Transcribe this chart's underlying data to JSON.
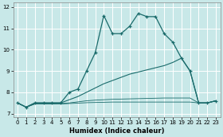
{
  "xlabel": "Humidex (Indice chaleur)",
  "bg_color": "#c8e8e8",
  "line_color": "#1a6b6b",
  "grid_color": "#ffffff",
  "xlim": [
    -0.5,
    23.5
  ],
  "ylim": [
    6.85,
    12.2
  ],
  "yticks": [
    7,
    8,
    9,
    10,
    11,
    12
  ],
  "xticks": [
    0,
    1,
    2,
    3,
    4,
    5,
    6,
    7,
    8,
    9,
    10,
    11,
    12,
    13,
    14,
    15,
    16,
    17,
    18,
    19,
    20,
    21,
    22,
    23
  ],
  "line1_x": [
    0,
    1,
    2,
    3,
    4,
    5,
    6,
    7,
    8,
    9,
    10,
    11,
    12,
    13,
    14,
    15,
    16,
    17,
    18,
    19,
    20,
    21,
    22,
    23
  ],
  "line1_y": [
    7.5,
    7.3,
    7.5,
    7.5,
    7.5,
    7.5,
    8.0,
    8.15,
    9.0,
    9.85,
    11.6,
    10.75,
    10.75,
    11.1,
    11.7,
    11.55,
    11.55,
    10.75,
    10.35,
    9.6,
    9.0,
    7.5,
    7.5,
    7.6
  ],
  "line2_x": [
    0,
    1,
    2,
    3,
    4,
    5,
    6,
    7,
    8,
    9,
    10,
    11,
    12,
    13,
    14,
    15,
    16,
    17,
    18,
    19,
    20,
    21,
    22,
    23
  ],
  "line2_y": [
    7.5,
    7.3,
    7.5,
    7.5,
    7.5,
    7.5,
    7.65,
    7.8,
    8.0,
    8.2,
    8.4,
    8.55,
    8.7,
    8.85,
    8.95,
    9.05,
    9.15,
    9.25,
    9.4,
    9.6,
    9.0,
    7.5,
    7.5,
    7.6
  ],
  "line3_x": [
    0,
    1,
    2,
    3,
    4,
    5,
    6,
    7,
    8,
    9,
    10,
    11,
    12,
    13,
    14,
    15,
    16,
    17,
    18,
    19,
    20,
    21,
    22,
    23
  ],
  "line3_y": [
    7.5,
    7.3,
    7.45,
    7.45,
    7.45,
    7.47,
    7.5,
    7.55,
    7.6,
    7.63,
    7.65,
    7.67,
    7.68,
    7.69,
    7.7,
    7.71,
    7.72,
    7.73,
    7.73,
    7.73,
    7.73,
    7.5,
    7.5,
    7.6
  ],
  "line4_x": [
    0,
    1,
    2,
    3,
    4,
    5,
    6,
    7,
    8,
    9,
    10,
    11,
    12,
    13,
    14,
    15,
    16,
    17,
    18,
    19,
    20,
    21,
    22,
    23
  ],
  "line4_y": [
    7.5,
    7.3,
    7.45,
    7.45,
    7.45,
    7.45,
    7.47,
    7.49,
    7.51,
    7.52,
    7.53,
    7.54,
    7.54,
    7.54,
    7.54,
    7.54,
    7.54,
    7.54,
    7.54,
    7.54,
    7.54,
    7.5,
    7.5,
    7.6
  ]
}
